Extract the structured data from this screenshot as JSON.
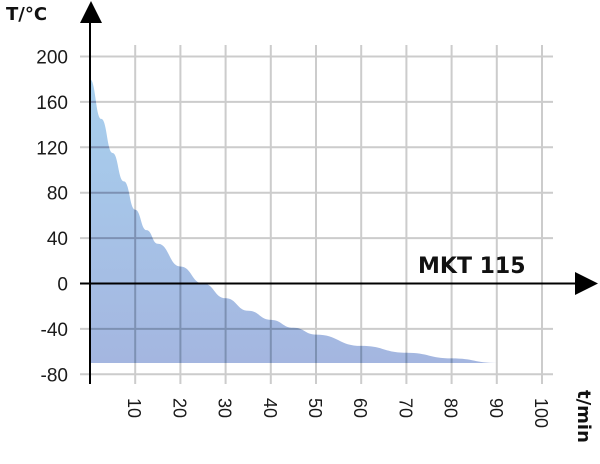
{
  "chart_data": {
    "type": "area",
    "title": "",
    "series_label": "MKT 115",
    "xlabel": "t/min",
    "ylabel": "T/°C",
    "xlim": [
      0,
      100
    ],
    "ylim": [
      -80,
      200
    ],
    "x_ticks": [
      10,
      20,
      30,
      40,
      50,
      60,
      70,
      80,
      90,
      100
    ],
    "x_tick_labels": [
      "10",
      "20",
      "30",
      "40",
      "50",
      "60",
      "70",
      "80",
      "90",
      "100"
    ],
    "y_ticks": [
      200,
      160,
      120,
      80,
      40,
      0,
      -40,
      -80
    ],
    "y_tick_labels": [
      "200",
      "160",
      "120",
      "80",
      "40",
      "0",
      "-40",
      "-80"
    ],
    "grid": true,
    "legend": "none",
    "fill_baseline": -70,
    "series": [
      {
        "name": "MKT 115",
        "x": [
          0,
          2.5,
          5,
          7.5,
          10,
          12.5,
          15,
          20,
          25,
          30,
          35,
          40,
          45,
          50,
          60,
          70,
          80,
          90
        ],
        "values": [
          180,
          145,
          115,
          90,
          65,
          47,
          35,
          15,
          0,
          -13,
          -24,
          -32,
          -39,
          -45,
          -55,
          -61,
          -66,
          -70
        ]
      }
    ],
    "colors": {
      "fill_top": "#a8d0ee",
      "fill_bottom": "#a4b6e0",
      "grid": "#cccccc",
      "grid_over_fill": "#7d91b3",
      "axis": "#000000"
    }
  }
}
